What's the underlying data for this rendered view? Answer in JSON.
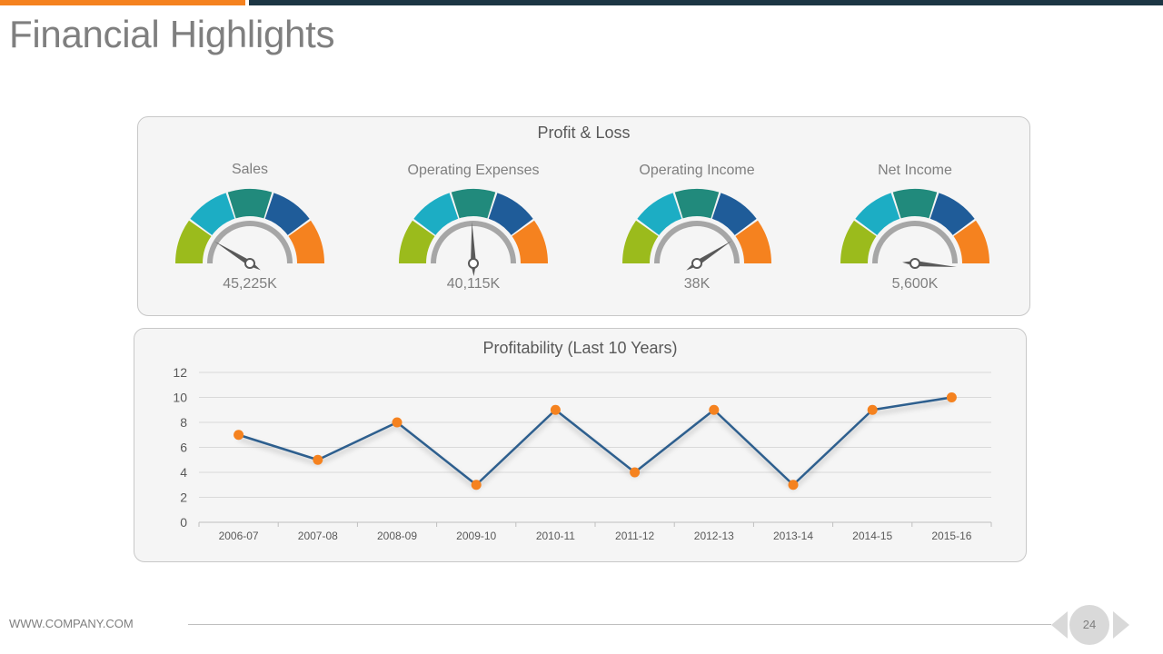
{
  "title": "Financial Highlights",
  "profit_loss": {
    "title": "Profit & Loss",
    "gauges": [
      {
        "label": "Sales",
        "value": "45,225K",
        "needle_deg": 148
      },
      {
        "label": "Operating Expenses",
        "value": "40,115K",
        "needle_deg": 92
      },
      {
        "label": "Operating Income",
        "value": "38K",
        "needle_deg": 33
      },
      {
        "label": "Net Income",
        "value": "5,600K",
        "needle_deg": 355
      }
    ],
    "segment_colors": [
      "#9bbb1c",
      "#1cadc4",
      "#218a7c",
      "#1f5c99",
      "#f5821f"
    ]
  },
  "chart_data": {
    "type": "line",
    "title": "Profitability (Last 10 Years)",
    "categories": [
      "2006-07",
      "2007-08",
      "2008-09",
      "2009-10",
      "2010-11",
      "2011-12",
      "2012-13",
      "2013-14",
      "2014-15",
      "2015-16"
    ],
    "values": [
      7,
      5,
      8,
      3,
      9,
      4,
      9,
      3,
      9,
      10
    ],
    "ylim": [
      0,
      12
    ],
    "yticks": [
      "0",
      "2",
      "4",
      "6",
      "8",
      "10",
      "12"
    ],
    "grid": true,
    "line_color": "#2d5f8e",
    "marker_color": "#f5821f"
  },
  "footer": {
    "url": "WWW.COMPANY.COM",
    "page_number": "24"
  }
}
